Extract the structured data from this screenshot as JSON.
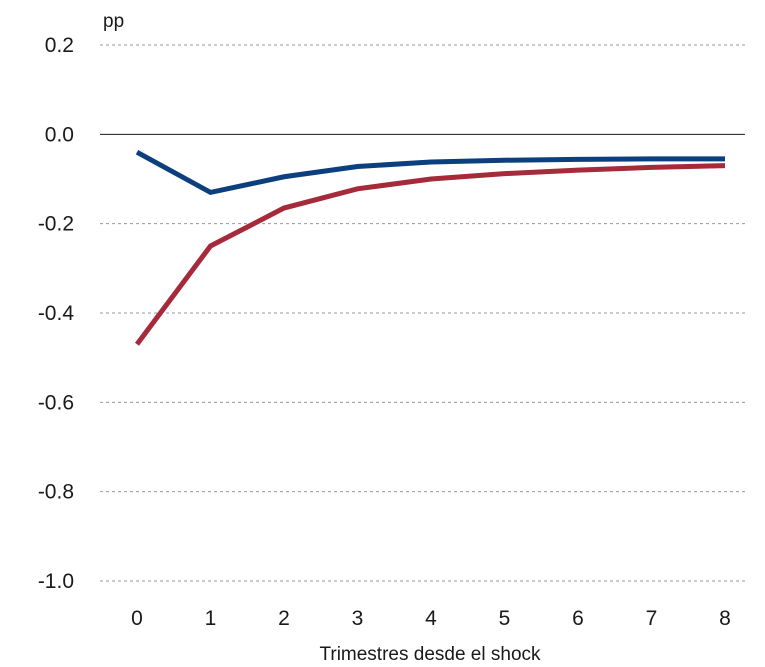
{
  "chart_data": {
    "type": "line",
    "unit_label": "pp",
    "xlabel": "Trimestres desde el shock",
    "ylabel": "",
    "x": [
      0,
      1,
      2,
      3,
      4,
      5,
      6,
      7,
      8
    ],
    "x_tick_labels": [
      "0",
      "1",
      "2",
      "3",
      "4",
      "5",
      "6",
      "7",
      "8"
    ],
    "ylim": [
      -1.0,
      0.2
    ],
    "y_ticks": [
      0.2,
      0.0,
      -0.2,
      -0.4,
      -0.6,
      -0.8,
      -1.0
    ],
    "y_tick_labels": [
      "0.2",
      "0.0",
      "-0.2",
      "-0.4",
      "-0.6",
      "-0.8",
      "-1.0"
    ],
    "grid": "horizontal dashed",
    "zero_line": true,
    "series": [
      {
        "color": "#0b3f7e",
        "values": [
          -0.04,
          -0.13,
          -0.095,
          -0.072,
          -0.062,
          -0.058,
          -0.056,
          -0.055,
          -0.055
        ]
      },
      {
        "color": "#a52a3a",
        "values": [
          -0.47,
          -0.25,
          -0.165,
          -0.122,
          -0.1,
          -0.088,
          -0.08,
          -0.074,
          -0.07
        ]
      }
    ]
  }
}
